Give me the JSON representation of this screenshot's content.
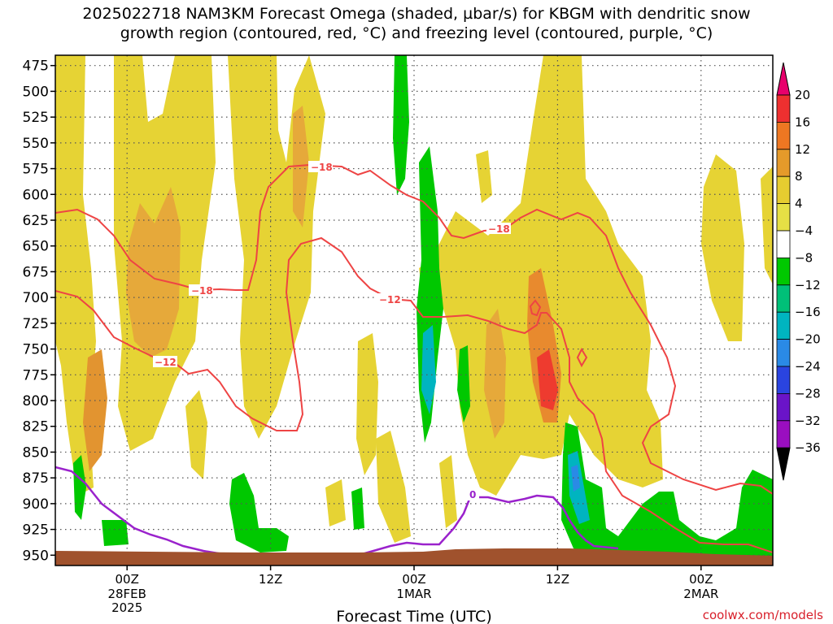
{
  "title_line1": "2025022718 NAM3KM Forecast Omega (shaded, µbar/s) for KBGM with dendritic snow",
  "title_line2": "growth region (contoured, red, °C) and freezing level (contoured, purple, °C)",
  "credit": "coolwx.com/models",
  "chart_data": {
    "type": "heatmap",
    "title": "2025022718 NAM3KM Forecast Omega (shaded, µbar/s) for KBGM with dendritic snow growth region (contoured, red, °C) and freezing level (contoured, purple, °C)",
    "xlabel": "Forecast Time (UTC)",
    "x_ticks": [
      {
        "label": "00Z",
        "sub": [
          "28FEB",
          "2025"
        ],
        "hour": 6
      },
      {
        "label": "12Z",
        "sub": [],
        "hour": 18
      },
      {
        "label": "00Z",
        "sub": [
          "1MAR"
        ],
        "hour": 30
      },
      {
        "label": "12Z",
        "sub": [],
        "hour": 42
      },
      {
        "label": "00Z",
        "sub": [
          "2MAR"
        ],
        "hour": 54
      }
    ],
    "x_range_hours": [
      0,
      60
    ],
    "y_ticks": [
      475,
      500,
      525,
      550,
      575,
      600,
      625,
      650,
      675,
      700,
      725,
      750,
      775,
      800,
      825,
      850,
      875,
      900,
      925,
      950
    ],
    "y_range_hPa": [
      465,
      960
    ],
    "colorbar": {
      "labels": [
        "20",
        "16",
        "12",
        "8",
        "4",
        "−4",
        "−8",
        "−12",
        "−16",
        "−20",
        "−24",
        "−28",
        "−32",
        "−36"
      ],
      "colors": [
        "#e8006c",
        "#ee3030",
        "#ee7722",
        "#e59a2a",
        "#e6cc30",
        "#e6e045",
        "#ffffff",
        "#00c800",
        "#00c078",
        "#00b4c0",
        "#2a8ae6",
        "#2a44e0",
        "#6a14c8",
        "#9a0ec0",
        "#a5a5a5",
        "#000000"
      ]
    },
    "contours": [
      {
        "label": "−18",
        "color": "#ee4444"
      },
      {
        "label": "−18",
        "color": "#ee4444"
      },
      {
        "label": "−12",
        "color": "#ee4444"
      },
      {
        "label": "−12",
        "color": "#ee4444"
      },
      {
        "label": "0",
        "color": "#9a22cc"
      }
    ]
  }
}
